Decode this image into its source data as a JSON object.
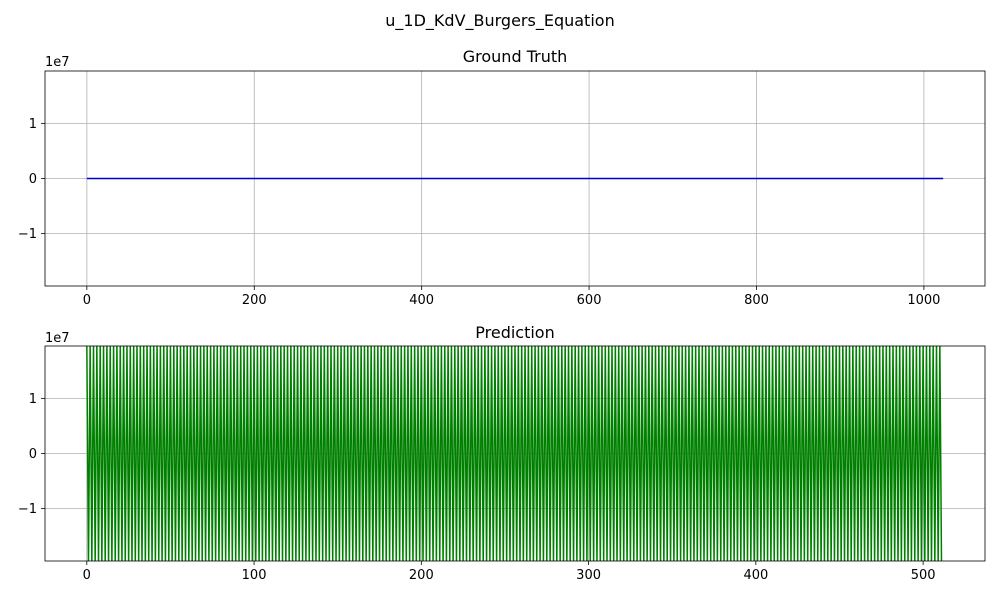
{
  "figure": {
    "suptitle": "u_1D_KdV_Burgers_Equation"
  },
  "chart_data": [
    {
      "type": "line",
      "title": "Ground Truth",
      "xlabel": "",
      "ylabel": "",
      "xlim": [
        -50,
        1073
      ],
      "ylim": [
        -19500000,
        19500000
      ],
      "y_offset_label": "1e7",
      "xticks": [
        0,
        200,
        400,
        600,
        800,
        1000
      ],
      "yticks": [
        -10000000,
        0,
        10000000
      ],
      "ytick_labels": [
        "−1",
        "0",
        "1"
      ],
      "grid": true,
      "series": [
        {
          "color": "#0000cc",
          "style": "constant",
          "x_start": 0,
          "x_end": 1023,
          "value": 0
        }
      ]
    },
    {
      "type": "line",
      "title": "Prediction",
      "xlabel": "",
      "ylabel": "",
      "xlim": [
        -25,
        537
      ],
      "ylim": [
        -19500000,
        19500000
      ],
      "y_offset_label": "1e7",
      "xticks": [
        0,
        100,
        200,
        300,
        400,
        500
      ],
      "yticks": [
        -10000000,
        0,
        10000000
      ],
      "ytick_labels": [
        "−1",
        "0",
        "1"
      ],
      "grid": true,
      "series": [
        {
          "color": "#008000",
          "style": "alternating",
          "x_start": 0,
          "x_end": 511,
          "high": 20000000,
          "low": -20000000
        }
      ]
    }
  ]
}
